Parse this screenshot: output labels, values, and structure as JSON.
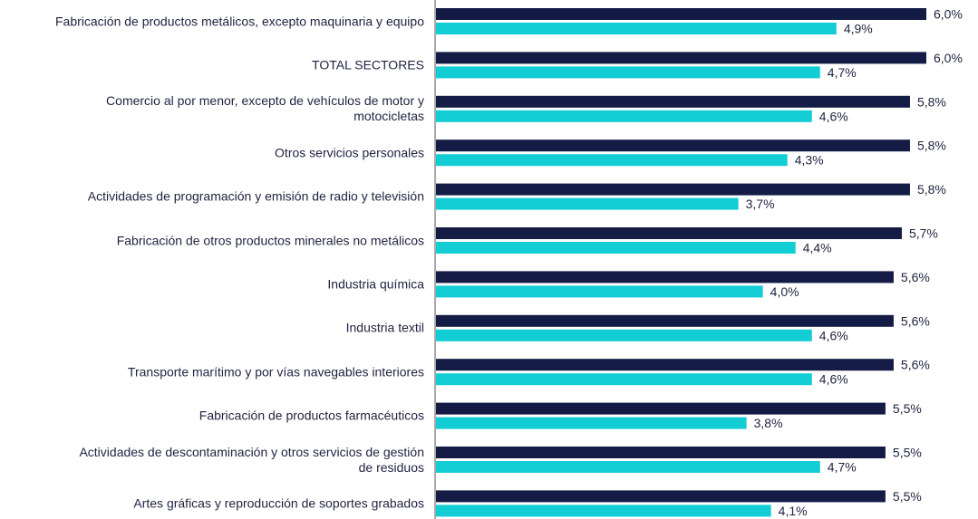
{
  "chart_data": {
    "type": "bar",
    "orientation": "horizontal",
    "categories": [
      "Fabricación de productos metálicos, excepto maquinaria y equipo",
      "TOTAL SECTORES",
      "Comercio al por menor, excepto de vehículos de motor y motocicletas",
      "Otros servicios personales",
      "Actividades de programación y emisión de radio y televisión",
      "Fabricación de otros productos minerales no metálicos",
      "Industria química",
      "Industria textil",
      "Transporte marítimo y por vías navegables interiores",
      "Fabricación de productos farmacéuticos",
      "Actividades de descontaminación y otros servicios de gestión de residuos",
      "Artes gráficas y reproducción de soportes grabados"
    ],
    "category_lines": [
      [
        "Fabricación de productos metálicos, excepto maquinaria y equipo"
      ],
      [
        "TOTAL SECTORES"
      ],
      [
        "Comercio al por menor, excepto de vehículos de motor y",
        "motocicletas"
      ],
      [
        "Otros servicios personales"
      ],
      [
        "Actividades de programación y emisión de radio y televisión"
      ],
      [
        "Fabricación de otros productos minerales no metálicos"
      ],
      [
        "Industria química"
      ],
      [
        "Industria textil"
      ],
      [
        "Transporte marítimo y por vías navegables interiores"
      ],
      [
        "Fabricación de productos farmacéuticos"
      ],
      [
        "Actividades de descontaminación y otros servicios de gestión",
        "de residuos"
      ],
      [
        "Artes gráficas y reproducción de soportes grabados"
      ]
    ],
    "series": [
      {
        "values": [
          6.0,
          6.0,
          5.8,
          5.8,
          5.8,
          5.7,
          5.6,
          5.6,
          5.6,
          5.5,
          5.5,
          5.5
        ],
        "labels": [
          "6,0%",
          "6,0%",
          "5,8%",
          "5,8%",
          "5,8%",
          "5,7%",
          "5,6%",
          "5,6%",
          "5,6%",
          "5,5%",
          "5,5%",
          "5,5%"
        ],
        "color": "#141c46"
      },
      {
        "values": [
          4.9,
          4.7,
          4.6,
          4.3,
          3.7,
          4.4,
          4.0,
          4.6,
          4.6,
          3.8,
          4.7,
          4.1
        ],
        "labels": [
          "4,9%",
          "4,7%",
          "4,6%",
          "4,3%",
          "3,7%",
          "4,4%",
          "4,0%",
          "4,6%",
          "4,6%",
          "3,8%",
          "4,7%",
          "4,1%"
        ],
        "color": "#13cdd4"
      }
    ],
    "xlim": [
      0,
      6.0
    ],
    "grid": false,
    "legend": "none",
    "title": "",
    "xlabel": "",
    "ylabel": ""
  }
}
